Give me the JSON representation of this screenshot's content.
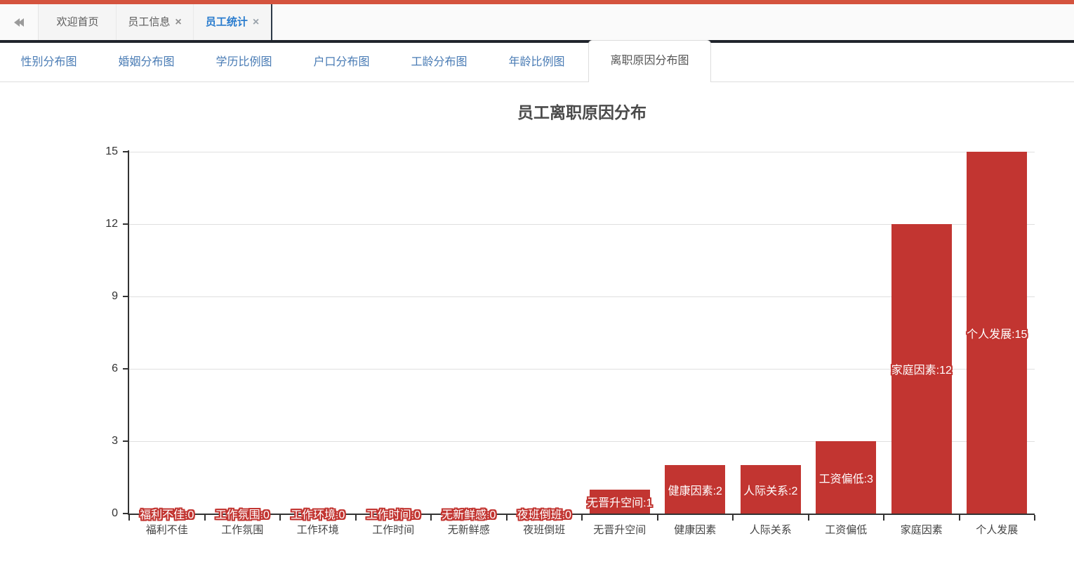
{
  "topbar": {
    "color": "#d4533e"
  },
  "window_tabs": {
    "collapse_icon": "double-left-chevron-icon",
    "close_icon": "×",
    "active_color": "#2a7cce",
    "items": [
      {
        "label": "欢迎首页",
        "closable": false,
        "active": false
      },
      {
        "label": "员工信息",
        "closable": true,
        "active": false
      },
      {
        "label": "员工统计",
        "closable": true,
        "active": true
      }
    ]
  },
  "chart_tabs": {
    "link_color": "#4a7cb5",
    "active_text_color": "#555555",
    "items": [
      {
        "label": "性别分布图",
        "active": false
      },
      {
        "label": "婚姻分布图",
        "active": false
      },
      {
        "label": "学历比例图",
        "active": false
      },
      {
        "label": "户口分布图",
        "active": false
      },
      {
        "label": "工龄分布图",
        "active": false
      },
      {
        "label": "年龄比例图",
        "active": false
      },
      {
        "label": "离职原因分布图",
        "active": true
      }
    ]
  },
  "chart_data": {
    "type": "bar",
    "title": "员工离职原因分布",
    "categories": [
      "福利不佳",
      "工作氛围",
      "工作环境",
      "工作时间",
      "无新鲜感",
      "夜班倒班",
      "无晋升空间",
      "健康因素",
      "人际关系",
      "工资偏低",
      "家庭因素",
      "个人发展"
    ],
    "values": [
      0,
      0,
      0,
      0,
      0,
      0,
      1,
      2,
      2,
      3,
      12,
      15
    ],
    "yticks": [
      0,
      3,
      6,
      9,
      12,
      15
    ],
    "ylim": [
      0,
      15
    ],
    "xlabel": "",
    "ylabel": "",
    "bar_color": "#c23531",
    "label_format": "{category}:{value}",
    "label_position": "inside",
    "label_text_color": "#ffffff",
    "label_border_color": "#c23531",
    "grid": true,
    "legend": false
  }
}
